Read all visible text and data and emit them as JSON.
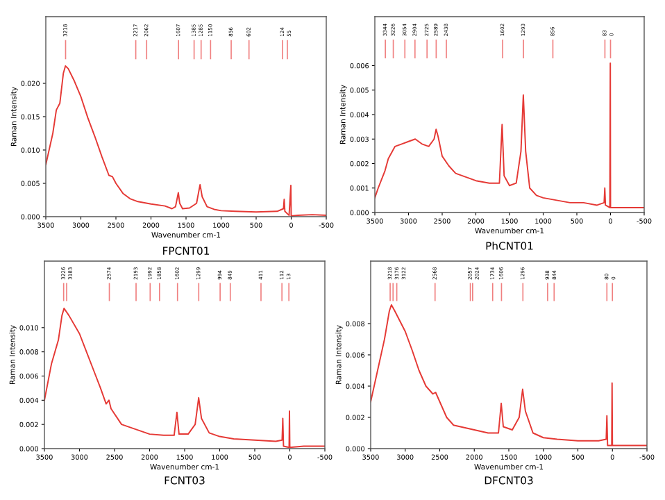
{
  "chart_data": [
    {
      "type": "line",
      "title": "FPCNT01",
      "xlabel": "Wavenumber cm-1",
      "ylabel": "Raman Intensity",
      "xlim": [
        3500,
        -500
      ],
      "ylim": [
        0,
        0.03
      ],
      "xticks": [
        3500,
        3000,
        2500,
        2000,
        1500,
        1000,
        500,
        0,
        -500
      ],
      "yticks": [
        {
          "value": 0,
          "label": "0.000"
        },
        {
          "value": 0.005,
          "label": "0.005"
        },
        {
          "value": 0.01,
          "label": "0.010"
        },
        {
          "value": 0.015,
          "label": "0.015"
        },
        {
          "value": 0.02,
          "label": "0.020"
        }
      ],
      "grid": false,
      "legend": false,
      "series": [
        {
          "color": "#e53935",
          "x": [
            3500,
            3400,
            3350,
            3300,
            3250,
            3220,
            3180,
            3100,
            3000,
            2900,
            2800,
            2700,
            2600,
            2550,
            2500,
            2400,
            2300,
            2200,
            2000,
            1800,
            1700,
            1650,
            1610,
            1590,
            1550,
            1450,
            1350,
            1300,
            1270,
            1200,
            1100,
            1000,
            800,
            500,
            200,
            110,
            100,
            90,
            30,
            5,
            0,
            -100,
            -300,
            -500
          ],
          "values": [
            0.0078,
            0.0125,
            0.016,
            0.017,
            0.0215,
            0.0226,
            0.0222,
            0.0205,
            0.018,
            0.0148,
            0.012,
            0.009,
            0.0062,
            0.006,
            0.005,
            0.0035,
            0.0027,
            0.0023,
            0.0019,
            0.0016,
            0.0012,
            0.0015,
            0.0036,
            0.002,
            0.0012,
            0.0013,
            0.002,
            0.0048,
            0.003,
            0.0015,
            0.0011,
            0.0009,
            0.0008,
            0.0007,
            0.0008,
            0.0012,
            0.0026,
            0.0008,
            0.0002,
            0.0047,
            0.0001,
            0.0002,
            0.0003,
            0.0002
          ]
        }
      ],
      "ref_lines": [
        {
          "axis": "x",
          "value": 3218,
          "label": "3218"
        },
        {
          "axis": "x",
          "value": 2217,
          "label": "2217"
        },
        {
          "axis": "x",
          "value": 2062,
          "label": "2062"
        },
        {
          "axis": "x",
          "value": 1607,
          "label": "1607"
        },
        {
          "axis": "x",
          "value": 1385,
          "label": "1385"
        },
        {
          "axis": "x",
          "value": 1285,
          "label": "1285"
        },
        {
          "axis": "x",
          "value": 1150,
          "label": "1150"
        },
        {
          "axis": "x",
          "value": 856,
          "label": "856"
        },
        {
          "axis": "x",
          "value": 602,
          "label": "602"
        },
        {
          "axis": "x",
          "value": 124,
          "label": "124"
        },
        {
          "axis": "x",
          "value": 55,
          "label": "55"
        }
      ]
    },
    {
      "type": "line",
      "title": "PhCNT01",
      "xlabel": "Wavenumber cm-1",
      "ylabel": "Raman Intensity",
      "xlim": [
        3500,
        -500
      ],
      "ylim": [
        0,
        0.008
      ],
      "xticks": [
        3500,
        3000,
        2500,
        2000,
        1500,
        1000,
        500,
        0,
        -500
      ],
      "yticks": [
        {
          "value": 0,
          "label": "0.000"
        },
        {
          "value": 0.001,
          "label": "0.001"
        },
        {
          "value": 0.002,
          "label": "0.002"
        },
        {
          "value": 0.003,
          "label": "0.003"
        },
        {
          "value": 0.004,
          "label": "0.004"
        },
        {
          "value": 0.005,
          "label": "0.005"
        },
        {
          "value": 0.006,
          "label": "0.006"
        }
      ],
      "grid": false,
      "legend": false,
      "series": [
        {
          "color": "#e53935",
          "x": [
            3500,
            3450,
            3350,
            3300,
            3200,
            3100,
            3000,
            2900,
            2800,
            2700,
            2620,
            2590,
            2560,
            2500,
            2400,
            2300,
            2200,
            2000,
            1800,
            1650,
            1610,
            1580,
            1500,
            1400,
            1330,
            1295,
            1260,
            1200,
            1100,
            1000,
            800,
            600,
            400,
            200,
            95,
            85,
            75,
            10,
            3,
            0,
            -200,
            -500
          ],
          "values": [
            0.0006,
            0.001,
            0.0017,
            0.0022,
            0.0027,
            0.0028,
            0.0029,
            0.003,
            0.0028,
            0.0027,
            0.003,
            0.0034,
            0.0031,
            0.0023,
            0.0019,
            0.0016,
            0.0015,
            0.0013,
            0.0012,
            0.0012,
            0.0036,
            0.0015,
            0.0011,
            0.0012,
            0.0025,
            0.0048,
            0.0025,
            0.001,
            0.0007,
            0.0006,
            0.0005,
            0.0004,
            0.0004,
            0.0003,
            0.0004,
            0.001,
            0.0003,
            0.0002,
            0.0061,
            0.0002,
            0.0002,
            0.0002
          ]
        }
      ],
      "ref_lines": [
        {
          "axis": "x",
          "value": 3344,
          "label": "3344"
        },
        {
          "axis": "x",
          "value": 3226,
          "label": "3226"
        },
        {
          "axis": "x",
          "value": 3054,
          "label": "3054"
        },
        {
          "axis": "x",
          "value": 2904,
          "label": "2904"
        },
        {
          "axis": "x",
          "value": 2725,
          "label": "2725"
        },
        {
          "axis": "x",
          "value": 2589,
          "label": "2589"
        },
        {
          "axis": "x",
          "value": 2438,
          "label": "2438"
        },
        {
          "axis": "x",
          "value": 1602,
          "label": "1602"
        },
        {
          "axis": "x",
          "value": 1293,
          "label": "1293"
        },
        {
          "axis": "x",
          "value": 856,
          "label": "856"
        },
        {
          "axis": "x",
          "value": 83,
          "label": "83"
        },
        {
          "axis": "x",
          "value": 0,
          "label": "0"
        }
      ]
    },
    {
      "type": "line",
      "title": "FCNT03",
      "xlabel": "Wavenumber cm-1",
      "ylabel": "Raman Intensity",
      "xlim": [
        3500,
        -500
      ],
      "ylim": [
        0,
        0.0155
      ],
      "xticks": [
        3500,
        3000,
        2500,
        2000,
        1500,
        1000,
        500,
        0,
        -500
      ],
      "yticks": [
        {
          "value": 0,
          "label": "0.000"
        },
        {
          "value": 0.002,
          "label": "0.002"
        },
        {
          "value": 0.004,
          "label": "0.004"
        },
        {
          "value": 0.006,
          "label": "0.006"
        },
        {
          "value": 0.008,
          "label": "0.008"
        },
        {
          "value": 0.01,
          "label": "0.010"
        }
      ],
      "grid": false,
      "legend": false,
      "series": [
        {
          "color": "#e53935",
          "x": [
            3500,
            3400,
            3300,
            3250,
            3220,
            3150,
            3000,
            2900,
            2800,
            2700,
            2620,
            2580,
            2550,
            2400,
            2200,
            2000,
            1800,
            1650,
            1610,
            1580,
            1450,
            1350,
            1300,
            1260,
            1150,
            1000,
            800,
            500,
            200,
            110,
            100,
            90,
            10,
            5,
            0,
            -200,
            -500
          ],
          "values": [
            0.004,
            0.007,
            0.009,
            0.011,
            0.0116,
            0.011,
            0.0095,
            0.008,
            0.0065,
            0.005,
            0.0037,
            0.004,
            0.0033,
            0.002,
            0.0016,
            0.0012,
            0.0011,
            0.0011,
            0.003,
            0.0012,
            0.0012,
            0.002,
            0.0042,
            0.0025,
            0.0013,
            0.001,
            0.0008,
            0.0007,
            0.0006,
            0.0007,
            0.0025,
            0.0002,
            0.0001,
            0.0031,
            0.0001,
            0.0002,
            0.0002
          ]
        }
      ],
      "ref_lines": [
        {
          "axis": "x",
          "value": 3226,
          "label": "3226"
        },
        {
          "axis": "x",
          "value": 3183,
          "label": "3183"
        },
        {
          "axis": "x",
          "value": 2574,
          "label": "2574"
        },
        {
          "axis": "x",
          "value": 2193,
          "label": "2193"
        },
        {
          "axis": "x",
          "value": 1992,
          "label": "1992"
        },
        {
          "axis": "x",
          "value": 1858,
          "label": "1858"
        },
        {
          "axis": "x",
          "value": 1602,
          "label": "1602"
        },
        {
          "axis": "x",
          "value": 1299,
          "label": "1299"
        },
        {
          "axis": "x",
          "value": 994,
          "label": "994"
        },
        {
          "axis": "x",
          "value": 849,
          "label": "849"
        },
        {
          "axis": "x",
          "value": 411,
          "label": "411"
        },
        {
          "axis": "x",
          "value": 112,
          "label": "112"
        },
        {
          "axis": "x",
          "value": 13,
          "label": "13"
        }
      ]
    },
    {
      "type": "line",
      "title": "DFCNT03",
      "xlabel": "Wavenumber cm-1",
      "ylabel": "Raman Intensity",
      "xlim": [
        3500,
        -500
      ],
      "ylim": [
        0,
        0.012
      ],
      "xticks": [
        3500,
        3000,
        2500,
        2000,
        1500,
        1000,
        500,
        0,
        -500
      ],
      "yticks": [
        {
          "value": 0,
          "label": "0.000"
        },
        {
          "value": 0.002,
          "label": "0.002"
        },
        {
          "value": 0.004,
          "label": "0.004"
        },
        {
          "value": 0.006,
          "label": "0.006"
        },
        {
          "value": 0.008,
          "label": "0.008"
        }
      ],
      "grid": false,
      "legend": false,
      "series": [
        {
          "color": "#e53935",
          "x": [
            3500,
            3400,
            3300,
            3230,
            3200,
            3150,
            3000,
            2900,
            2800,
            2700,
            2600,
            2560,
            2500,
            2400,
            2300,
            2000,
            1800,
            1650,
            1610,
            1580,
            1450,
            1350,
            1300,
            1260,
            1150,
            1000,
            800,
            500,
            200,
            90,
            80,
            70,
            10,
            5,
            0,
            -200,
            -500
          ],
          "values": [
            0.003,
            0.005,
            0.007,
            0.0088,
            0.0092,
            0.0088,
            0.0075,
            0.0063,
            0.005,
            0.004,
            0.0035,
            0.0036,
            0.003,
            0.002,
            0.0015,
            0.0012,
            0.001,
            0.001,
            0.0029,
            0.0014,
            0.0012,
            0.002,
            0.0038,
            0.0024,
            0.001,
            0.0007,
            0.0006,
            0.0005,
            0.0005,
            0.0006,
            0.0021,
            0.0002,
            0.0002,
            0.0042,
            0.0002,
            0.0002,
            0.0002
          ]
        }
      ],
      "ref_lines": [
        {
          "axis": "x",
          "value": 3218,
          "label": "3218"
        },
        {
          "axis": "x",
          "value": 3176,
          "label": "3176"
        },
        {
          "axis": "x",
          "value": 3122,
          "label": "3122"
        },
        {
          "axis": "x",
          "value": 2568,
          "label": "2568"
        },
        {
          "axis": "x",
          "value": 2057,
          "label": "2057"
        },
        {
          "axis": "x",
          "value": 2024,
          "label": "2024"
        },
        {
          "axis": "x",
          "value": 1734,
          "label": "1734"
        },
        {
          "axis": "x",
          "value": 1606,
          "label": "1606"
        },
        {
          "axis": "x",
          "value": 1296,
          "label": "1296"
        },
        {
          "axis": "x",
          "value": 938,
          "label": "938"
        },
        {
          "axis": "x",
          "value": 844,
          "label": "844"
        },
        {
          "axis": "x",
          "value": 80,
          "label": "80"
        },
        {
          "axis": "x",
          "value": 0,
          "label": "0"
        }
      ]
    }
  ]
}
